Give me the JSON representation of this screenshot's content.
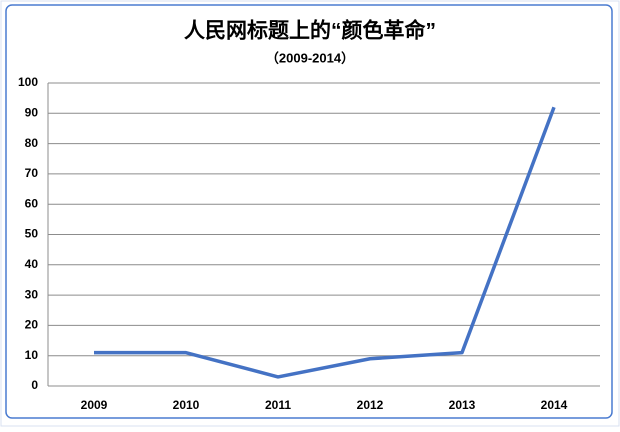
{
  "chart_data": {
    "type": "line",
    "title": "人民网标题上的“颜色革命”",
    "subtitle": "（2009-2014）",
    "categories": [
      "2009",
      "2010",
      "2011",
      "2012",
      "2013",
      "2014"
    ],
    "values": [
      11,
      11,
      3,
      9,
      11,
      92
    ],
    "color": "#4472c4",
    "ylim": [
      0,
      100
    ],
    "yticks": [
      0,
      10,
      20,
      30,
      40,
      50,
      60,
      70,
      80,
      90,
      100
    ],
    "grid": true
  }
}
